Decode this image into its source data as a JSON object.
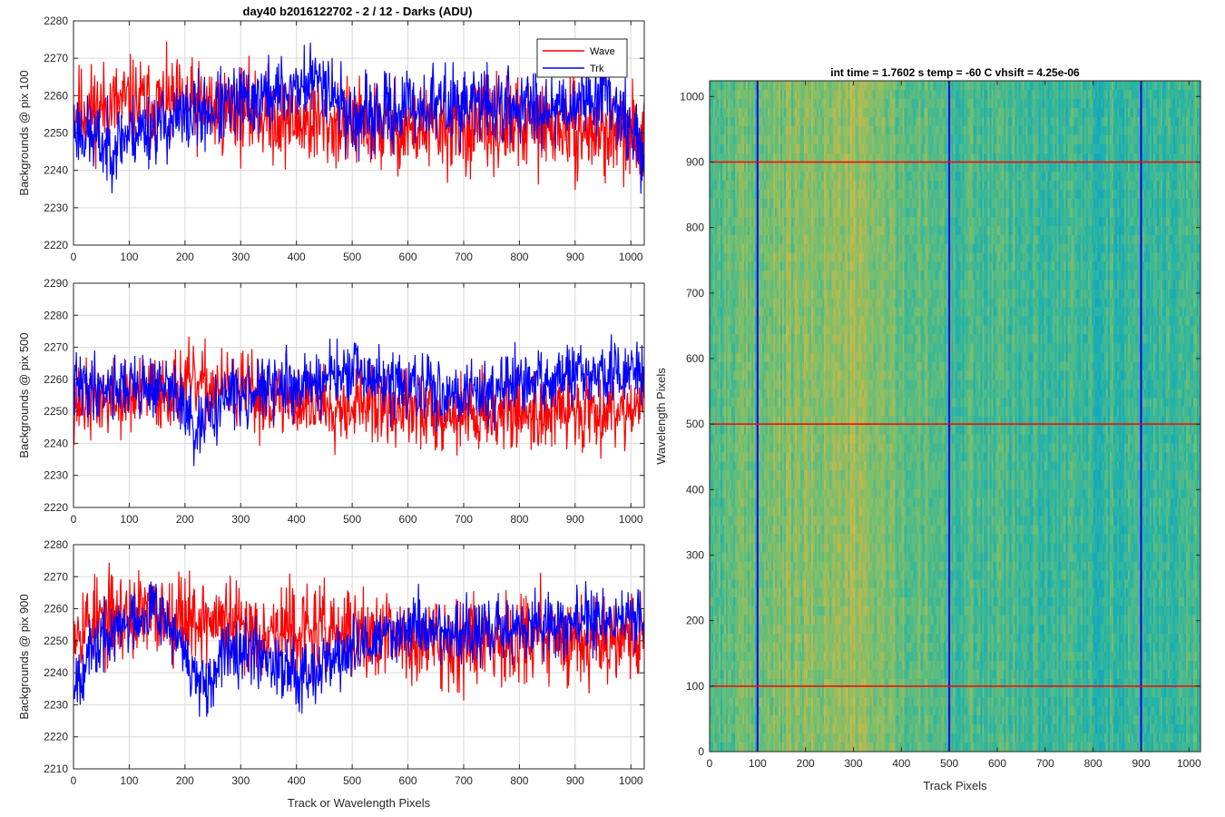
{
  "figure_title": "day40 b2016122702 - 2 / 12 - Darks (ADU)",
  "colors": {
    "wave": "#ff0000",
    "trk": "#0000ff",
    "axis": "#262626",
    "grid": "#d9d9d9"
  },
  "chart_data": [
    {
      "type": "line",
      "ylabel": "Backgrounds @ pix 100",
      "xlabel": "",
      "xlim": [
        0,
        1024
      ],
      "ylim": [
        2220,
        2280
      ],
      "xticks": [
        0,
        100,
        200,
        300,
        400,
        500,
        600,
        700,
        800,
        900,
        1000
      ],
      "yticks": [
        2220,
        2230,
        2240,
        2250,
        2260,
        2270,
        2280
      ],
      "grid": true,
      "legend": {
        "position": "top-right",
        "entries": [
          "Wave",
          "Trk"
        ]
      },
      "series": [
        {
          "name": "Wave",
          "color": "#ff0000",
          "baseline": [
            [
              0,
              2256
            ],
            [
              100,
              2258
            ],
            [
              200,
              2257
            ],
            [
              300,
              2256
            ],
            [
              400,
              2253
            ],
            [
              500,
              2252
            ],
            [
              600,
              2251
            ],
            [
              700,
              2251
            ],
            [
              800,
              2252
            ],
            [
              900,
              2251
            ],
            [
              1000,
              2249
            ],
            [
              1024,
              2250
            ]
          ],
          "noise": 6,
          "seed": 11
        },
        {
          "name": "Trk",
          "color": "#0000ff",
          "baseline": [
            [
              0,
              2252
            ],
            [
              60,
              2246
            ],
            [
              100,
              2250
            ],
            [
              200,
              2254
            ],
            [
              300,
              2258
            ],
            [
              400,
              2262
            ],
            [
              450,
              2265
            ],
            [
              500,
              2253
            ],
            [
              600,
              2257
            ],
            [
              700,
              2258
            ],
            [
              800,
              2257
            ],
            [
              900,
              2258
            ],
            [
              960,
              2262
            ],
            [
              1024,
              2244
            ]
          ],
          "noise": 5,
          "seed": 23
        }
      ]
    },
    {
      "type": "line",
      "ylabel": "Backgrounds @ pix 500",
      "xlabel": "",
      "xlim": [
        0,
        1024
      ],
      "ylim": [
        2220,
        2290
      ],
      "xticks": [
        0,
        100,
        200,
        300,
        400,
        500,
        600,
        700,
        800,
        900,
        1000
      ],
      "yticks": [
        2220,
        2230,
        2240,
        2250,
        2260,
        2270,
        2280,
        2290
      ],
      "grid": true,
      "series": [
        {
          "name": "Wave",
          "color": "#ff0000",
          "baseline": [
            [
              0,
              2253
            ],
            [
              100,
              2254
            ],
            [
              200,
              2258
            ],
            [
              300,
              2256
            ],
            [
              400,
              2252
            ],
            [
              500,
              2253
            ],
            [
              600,
              2250
            ],
            [
              700,
              2249
            ],
            [
              800,
              2250
            ],
            [
              900,
              2250
            ],
            [
              1024,
              2252
            ]
          ],
          "noise": 6,
          "seed": 37
        },
        {
          "name": "Trk",
          "color": "#0000ff",
          "baseline": [
            [
              0,
              2258
            ],
            [
              100,
              2258
            ],
            [
              180,
              2257
            ],
            [
              220,
              2242
            ],
            [
              260,
              2253
            ],
            [
              300,
              2256
            ],
            [
              400,
              2258
            ],
            [
              500,
              2262
            ],
            [
              600,
              2257
            ],
            [
              700,
              2256
            ],
            [
              800,
              2258
            ],
            [
              900,
              2261
            ],
            [
              1024,
              2262
            ]
          ],
          "noise": 5,
          "seed": 41
        }
      ]
    },
    {
      "type": "line",
      "ylabel": "Backgrounds @ pix 900",
      "xlabel": "Track or Wavelength Pixels",
      "xlim": [
        0,
        1024
      ],
      "ylim": [
        2210,
        2280
      ],
      "xticks": [
        0,
        100,
        200,
        300,
        400,
        500,
        600,
        700,
        800,
        900,
        1000
      ],
      "yticks": [
        2210,
        2220,
        2230,
        2240,
        2250,
        2260,
        2270,
        2280
      ],
      "grid": true,
      "series": [
        {
          "name": "Wave",
          "color": "#ff0000",
          "baseline": [
            [
              0,
              2255
            ],
            [
              100,
              2258
            ],
            [
              200,
              2258
            ],
            [
              300,
              2254
            ],
            [
              400,
              2253
            ],
            [
              500,
              2252
            ],
            [
              600,
              2250
            ],
            [
              700,
              2250
            ],
            [
              800,
              2252
            ],
            [
              900,
              2251
            ],
            [
              1024,
              2252
            ]
          ],
          "noise": 7,
          "seed": 53
        },
        {
          "name": "Trk",
          "color": "#0000ff",
          "baseline": [
            [
              0,
              2238
            ],
            [
              50,
              2250
            ],
            [
              150,
              2262
            ],
            [
              200,
              2245
            ],
            [
              240,
              2232
            ],
            [
              280,
              2250
            ],
            [
              350,
              2245
            ],
            [
              400,
              2240
            ],
            [
              480,
              2245
            ],
            [
              600,
              2255
            ],
            [
              700,
              2252
            ],
            [
              800,
              2254
            ],
            [
              900,
              2256
            ],
            [
              1024,
              2257
            ]
          ],
          "noise": 5,
          "seed": 67
        }
      ]
    },
    {
      "type": "heatmap",
      "title": "int time = 1.7602 s    temp = -60 C    vhsift = 4.25e-06",
      "xlabel": "Track Pixels",
      "ylabel": "Wavelength Pixels",
      "xlim": [
        0,
        1024
      ],
      "ylim": [
        0,
        1024
      ],
      "xticks": [
        0,
        100,
        200,
        300,
        400,
        500,
        600,
        700,
        800,
        900,
        1000
      ],
      "yticks": [
        0,
        100,
        200,
        300,
        400,
        500,
        600,
        700,
        800,
        900,
        1000
      ],
      "colormap": "parula",
      "vertical_lines": {
        "x": [
          100,
          500,
          900
        ],
        "color": "#0000ff"
      },
      "horizontal_lines": {
        "y": [
          100,
          500,
          900
        ],
        "color": "#ff0000"
      },
      "column_profile": [
        [
          0,
          0.52
        ],
        [
          100,
          0.56
        ],
        [
          200,
          0.6
        ],
        [
          300,
          0.63
        ],
        [
          350,
          0.6
        ],
        [
          400,
          0.54
        ],
        [
          500,
          0.5
        ],
        [
          600,
          0.49
        ],
        [
          700,
          0.47
        ],
        [
          800,
          0.46
        ],
        [
          900,
          0.47
        ],
        [
          1024,
          0.46
        ]
      ]
    }
  ]
}
